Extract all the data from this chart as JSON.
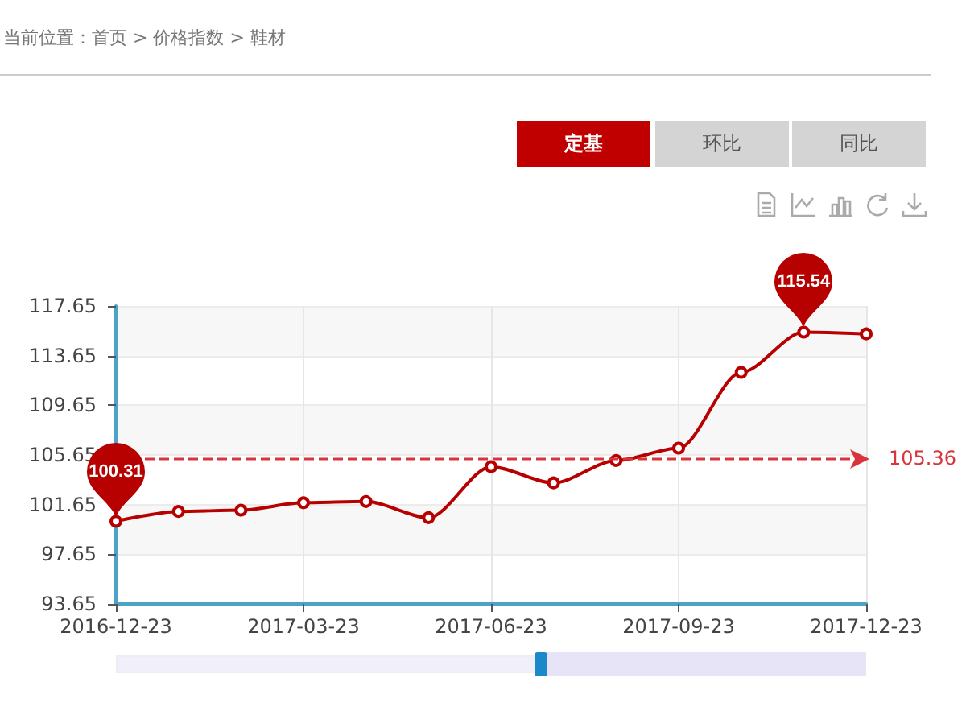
{
  "chart_data": {
    "type": "line",
    "annotations": [
      "当前位置：首页 > 价格指数 > 鞋材",
      "定基",
      "环比",
      "同比"
    ],
    "categories": [
      "2016-12-23",
      null,
      null,
      "2017-03-23",
      null,
      null,
      "2017-06-23",
      null,
      null,
      "2017-09-23",
      null,
      null,
      "2017-12-23"
    ],
    "series": [
      {
        "color": "#b70000",
        "values": [
          100.31,
          101.1,
          101.2,
          101.8,
          101.9,
          100.6,
          104.7,
          103.4,
          105.2,
          106.2,
          112.3,
          115.54,
          115.4
        ],
        "value_labels": [
          "100.31",
          null,
          null,
          null,
          null,
          null,
          null,
          null,
          null,
          null,
          null,
          "115.54",
          null
        ]
      }
    ],
    "ylim": [
      93.65,
      117.65
    ],
    "yticks": [
      93.65,
      97.65,
      101.65,
      105.65,
      109.65,
      113.65,
      117.65
    ],
    "ref_lines": [
      {
        "axis": "y",
        "value": 105.36,
        "label": "105.36",
        "color": "#d9343b",
        "line_style": "dashed"
      }
    ],
    "grid": true,
    "marker": "circle",
    "line_style": "solid"
  }
}
